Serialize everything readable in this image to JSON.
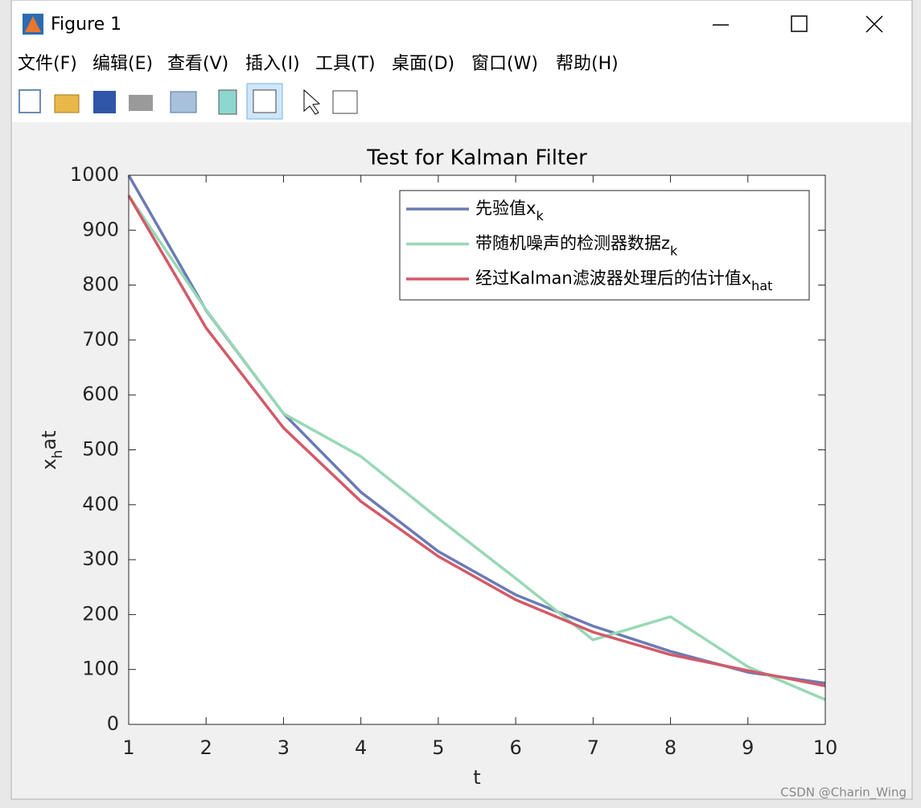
{
  "window": {
    "title": "Figure 1",
    "menu": [
      "文件(F)",
      "编辑(E)",
      "查看(V)",
      "插入(I)",
      "工具(T)",
      "桌面(D)",
      "窗口(W)",
      "帮助(H)"
    ]
  },
  "watermark": "CSDN @Charin_Wing",
  "chart_data": {
    "type": "line",
    "title": "Test for Kalman Filter",
    "xlabel": "t",
    "ylabel": {
      "base": "x",
      "sub": "h",
      "tail": "at"
    },
    "x": [
      1,
      2,
      3,
      4,
      5,
      6,
      7,
      8,
      9,
      10
    ],
    "xlim": [
      1,
      10
    ],
    "xticks": [
      1,
      2,
      3,
      4,
      5,
      6,
      7,
      8,
      9,
      10
    ],
    "ylim": [
      0,
      1000
    ],
    "yticks": [
      0,
      100,
      200,
      300,
      400,
      500,
      600,
      700,
      800,
      900,
      1000
    ],
    "legend": "upper right",
    "series": [
      {
        "name": "先验值x",
        "name_sub": "k",
        "color": "#6a7bb4",
        "values": [
          1000,
          754,
          566,
          423,
          315,
          236,
          179,
          133,
          95,
          75
        ]
      },
      {
        "name": "带随机噪声的检测器数据z",
        "name_sub": "k",
        "color": "#98d8b5",
        "values": [
          963,
          755,
          566,
          488,
          375,
          266,
          154,
          196,
          105,
          45
        ]
      },
      {
        "name": "经过Kalman滤波器处理后的估计值x",
        "name_sub": "hat",
        "color": "#d35a68",
        "values": [
          963,
          722,
          540,
          406,
          306,
          227,
          168,
          127,
          98,
          70
        ]
      }
    ]
  }
}
